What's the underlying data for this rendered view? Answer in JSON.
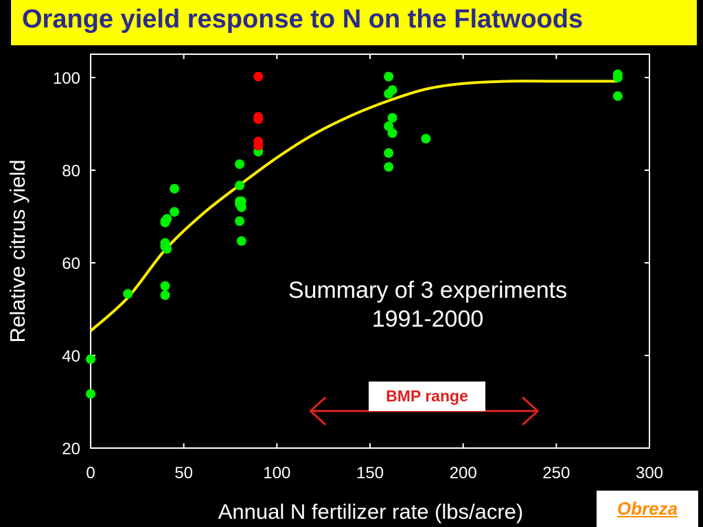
{
  "chart_data": {
    "type": "scatter",
    "title": "Orange yield response to N on the Flatwoods",
    "xlabel": "Annual N fertilizer rate (lbs/acre)",
    "ylabel": "Relative citrus yield",
    "xlim": [
      0,
      300
    ],
    "ylim": [
      20,
      105
    ],
    "xticks": [
      0,
      50,
      100,
      150,
      200,
      250,
      300
    ],
    "yticks": [
      20,
      40,
      60,
      80,
      100
    ],
    "grid": false,
    "series": [
      {
        "color": "#00ee00",
        "points": [
          [
            0,
            39.2
          ],
          [
            0,
            31.7
          ],
          [
            20,
            53.3
          ],
          [
            40,
            55.0
          ],
          [
            40,
            53.0
          ],
          [
            40,
            68.7
          ],
          [
            40,
            64.3
          ],
          [
            40,
            63.5
          ],
          [
            40,
            69.0
          ],
          [
            41,
            69.5
          ],
          [
            41,
            63.0
          ],
          [
            45,
            76.0
          ],
          [
            45,
            71.0
          ],
          [
            80,
            81.3
          ],
          [
            80,
            76.7
          ],
          [
            80,
            73.3
          ],
          [
            80,
            72.7
          ],
          [
            80,
            69.0
          ],
          [
            81,
            72.0
          ],
          [
            81,
            73.3
          ],
          [
            81,
            64.7
          ],
          [
            90,
            84.0
          ],
          [
            160,
            100.2
          ],
          [
            160,
            96.5
          ],
          [
            160,
            89.5
          ],
          [
            160,
            83.7
          ],
          [
            160,
            80.7
          ],
          [
            162,
            97.3
          ],
          [
            162,
            91.3
          ],
          [
            162,
            88.0
          ],
          [
            180,
            86.8
          ],
          [
            283,
            100.7
          ],
          [
            283,
            100.0
          ],
          [
            283,
            96.0
          ]
        ]
      },
      {
        "color": "#ff0000",
        "points": [
          [
            90,
            100.2
          ],
          [
            90,
            91.5
          ],
          [
            90,
            91.0
          ],
          [
            90,
            86.2
          ],
          [
            90,
            85.3
          ]
        ]
      }
    ],
    "fit_curve": {
      "color": "#ffee00",
      "points": [
        [
          0,
          45.3
        ],
        [
          20,
          52.5
        ],
        [
          40,
          62.8
        ],
        [
          60,
          70.5
        ],
        [
          80,
          76.8
        ],
        [
          100,
          82.7
        ],
        [
          120,
          87.8
        ],
        [
          140,
          91.8
        ],
        [
          160,
          95.0
        ],
        [
          180,
          97.5
        ],
        [
          200,
          98.7
        ],
        [
          225,
          99.2
        ],
        [
          250,
          99.2
        ],
        [
          283,
          99.2
        ]
      ]
    },
    "bmp_range": {
      "label": "BMP range",
      "x": [
        118,
        240
      ],
      "y": 28,
      "color": "#e02020"
    }
  },
  "annotation": {
    "line1": "Summary of 3 experiments",
    "line2": "1991-2000"
  },
  "credit": "Obreza"
}
